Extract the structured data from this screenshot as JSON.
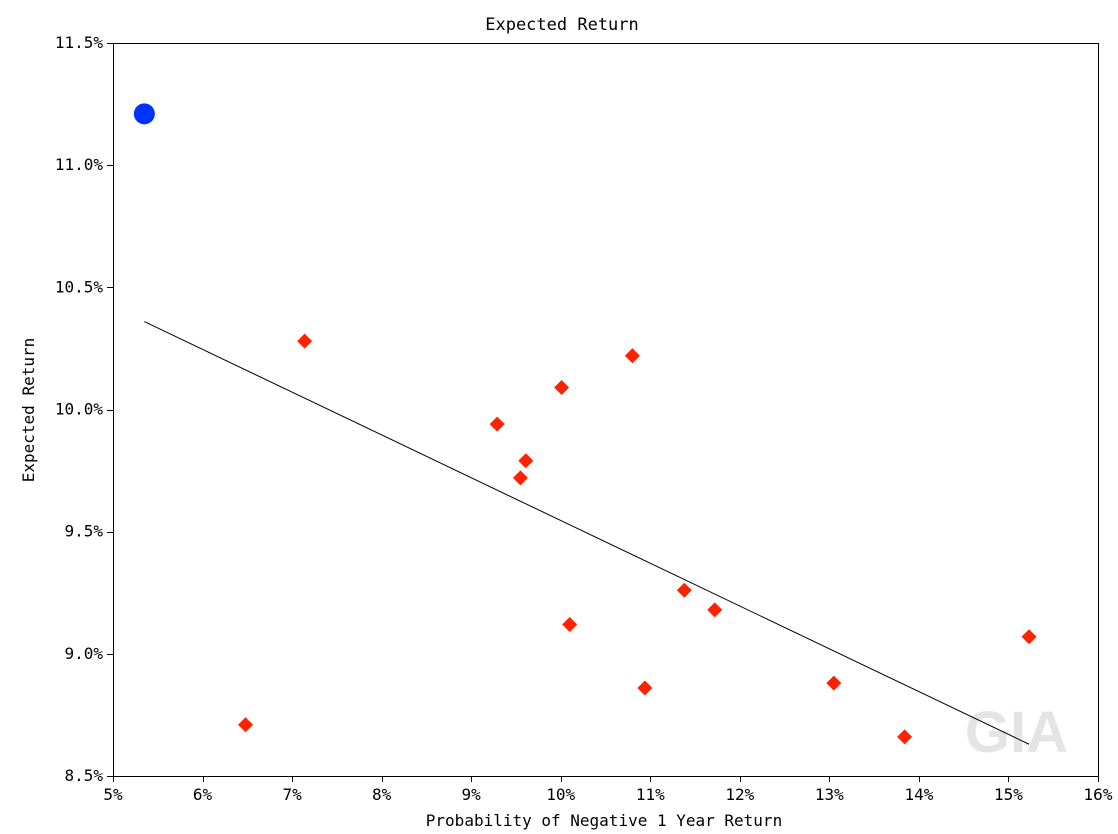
{
  "chart_data": {
    "type": "scatter",
    "title": "Expected Return",
    "xlabel": "Probability of Negative 1 Year Return",
    "ylabel": "Expected Return",
    "xlim": [
      5,
      16
    ],
    "ylim": [
      8.5,
      11.5
    ],
    "x_ticks": [
      5,
      6,
      7,
      8,
      9,
      10,
      11,
      12,
      13,
      14,
      15,
      16
    ],
    "x_tick_labels": [
      "5%",
      "6%",
      "7%",
      "8%",
      "9%",
      "10%",
      "11%",
      "12%",
      "13%",
      "14%",
      "15%",
      "16%"
    ],
    "y_ticks": [
      8.5,
      9.0,
      9.5,
      10.0,
      10.5,
      11.0,
      11.5
    ],
    "y_tick_labels": [
      "8.5%",
      "9.0%",
      "9.5%",
      "10.0%",
      "10.5%",
      "11.0%",
      "11.5%"
    ],
    "grid": false,
    "watermark": "GIA",
    "series": [
      {
        "marker": "circle",
        "color": "#0033ff",
        "points": [
          {
            "x": 5.35,
            "y": 11.21
          }
        ]
      },
      {
        "marker": "diamond",
        "color": "#ff2200",
        "points": [
          {
            "x": 6.48,
            "y": 8.71
          },
          {
            "x": 7.14,
            "y": 10.28
          },
          {
            "x": 9.29,
            "y": 9.94
          },
          {
            "x": 9.55,
            "y": 9.72
          },
          {
            "x": 9.61,
            "y": 9.79
          },
          {
            "x": 10.01,
            "y": 10.09
          },
          {
            "x": 10.1,
            "y": 9.12
          },
          {
            "x": 10.8,
            "y": 10.22
          },
          {
            "x": 10.94,
            "y": 8.86
          },
          {
            "x": 11.38,
            "y": 9.26
          },
          {
            "x": 11.72,
            "y": 9.18
          },
          {
            "x": 13.05,
            "y": 8.88
          },
          {
            "x": 13.84,
            "y": 8.66
          },
          {
            "x": 15.23,
            "y": 9.07
          }
        ]
      }
    ],
    "trend_line": {
      "color": "#000000",
      "from": {
        "x": 5.35,
        "y": 10.36
      },
      "to": {
        "x": 15.23,
        "y": 8.63
      }
    }
  }
}
